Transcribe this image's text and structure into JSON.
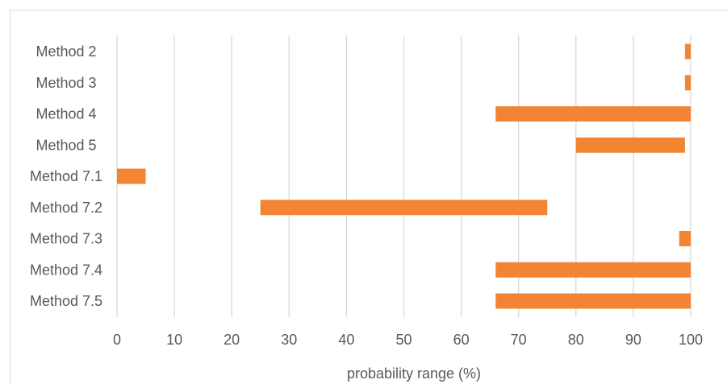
{
  "chart_data": {
    "type": "bar",
    "orientation": "horizontal",
    "style": "floating-range",
    "title": "",
    "xlabel": "probability range (%)",
    "ylabel": "",
    "xlim": [
      0,
      100
    ],
    "xticks": [
      0,
      10,
      20,
      30,
      40,
      50,
      60,
      70,
      80,
      90,
      100
    ],
    "grid": "vertical",
    "bar_color": "#F28533",
    "categories": [
      "Method 2",
      "Method 3",
      "Method 4",
      "Method 5",
      "Method 7.1",
      "Method 7.2",
      "Method 7.3",
      "Method 7.4",
      "Method 7.5"
    ],
    "ranges": [
      [
        99,
        100
      ],
      [
        99,
        100
      ],
      [
        66,
        100
      ],
      [
        80,
        99
      ],
      [
        0,
        5
      ],
      [
        25,
        75
      ],
      [
        98,
        100
      ],
      [
        66,
        100
      ],
      [
        66,
        100
      ]
    ]
  }
}
